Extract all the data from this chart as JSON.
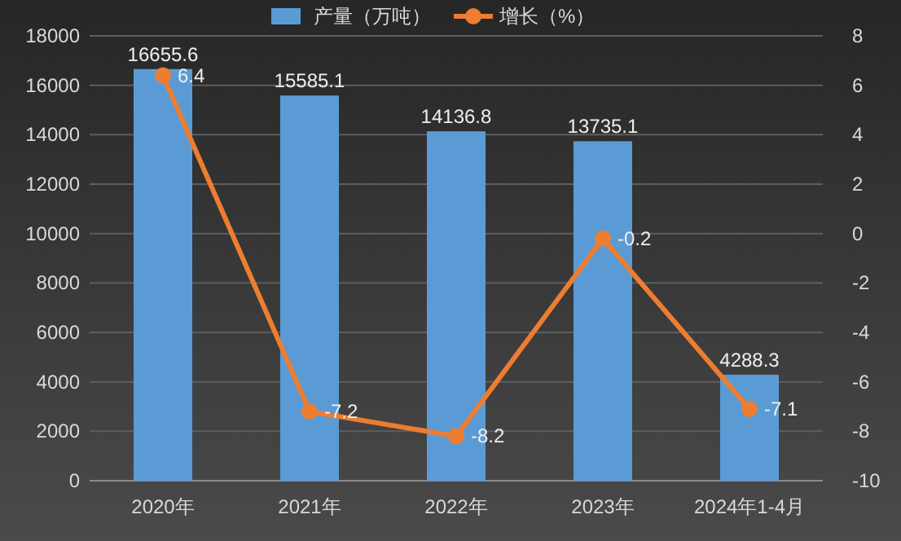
{
  "chart_data": {
    "type": "bar",
    "categories": [
      "2020年",
      "2021年",
      "2022年",
      "2023年",
      "2024年1-4月"
    ],
    "series": [
      {
        "name": "产量（万吨）",
        "color": "#5b9bd5",
        "values": [
          16655.6,
          15585.1,
          14136.8,
          13735.1,
          4288.3
        ]
      },
      {
        "name": "增长（%）",
        "type": "line",
        "axis": "y2",
        "color": "#ed7d31",
        "values": [
          6.4,
          -7.2,
          -8.2,
          -0.2,
          -7.1
        ]
      }
    ],
    "ylim": [
      0,
      18000
    ],
    "yticks": [
      0,
      2000,
      4000,
      6000,
      8000,
      10000,
      12000,
      14000,
      16000,
      18000
    ],
    "y2lim": [
      -10,
      8
    ],
    "y2ticks": [
      -10,
      -8,
      -6,
      -4,
      -2,
      0,
      2,
      4,
      6,
      8
    ],
    "grid": "y",
    "legend": "top",
    "marker": "circle",
    "data_labels": true
  }
}
